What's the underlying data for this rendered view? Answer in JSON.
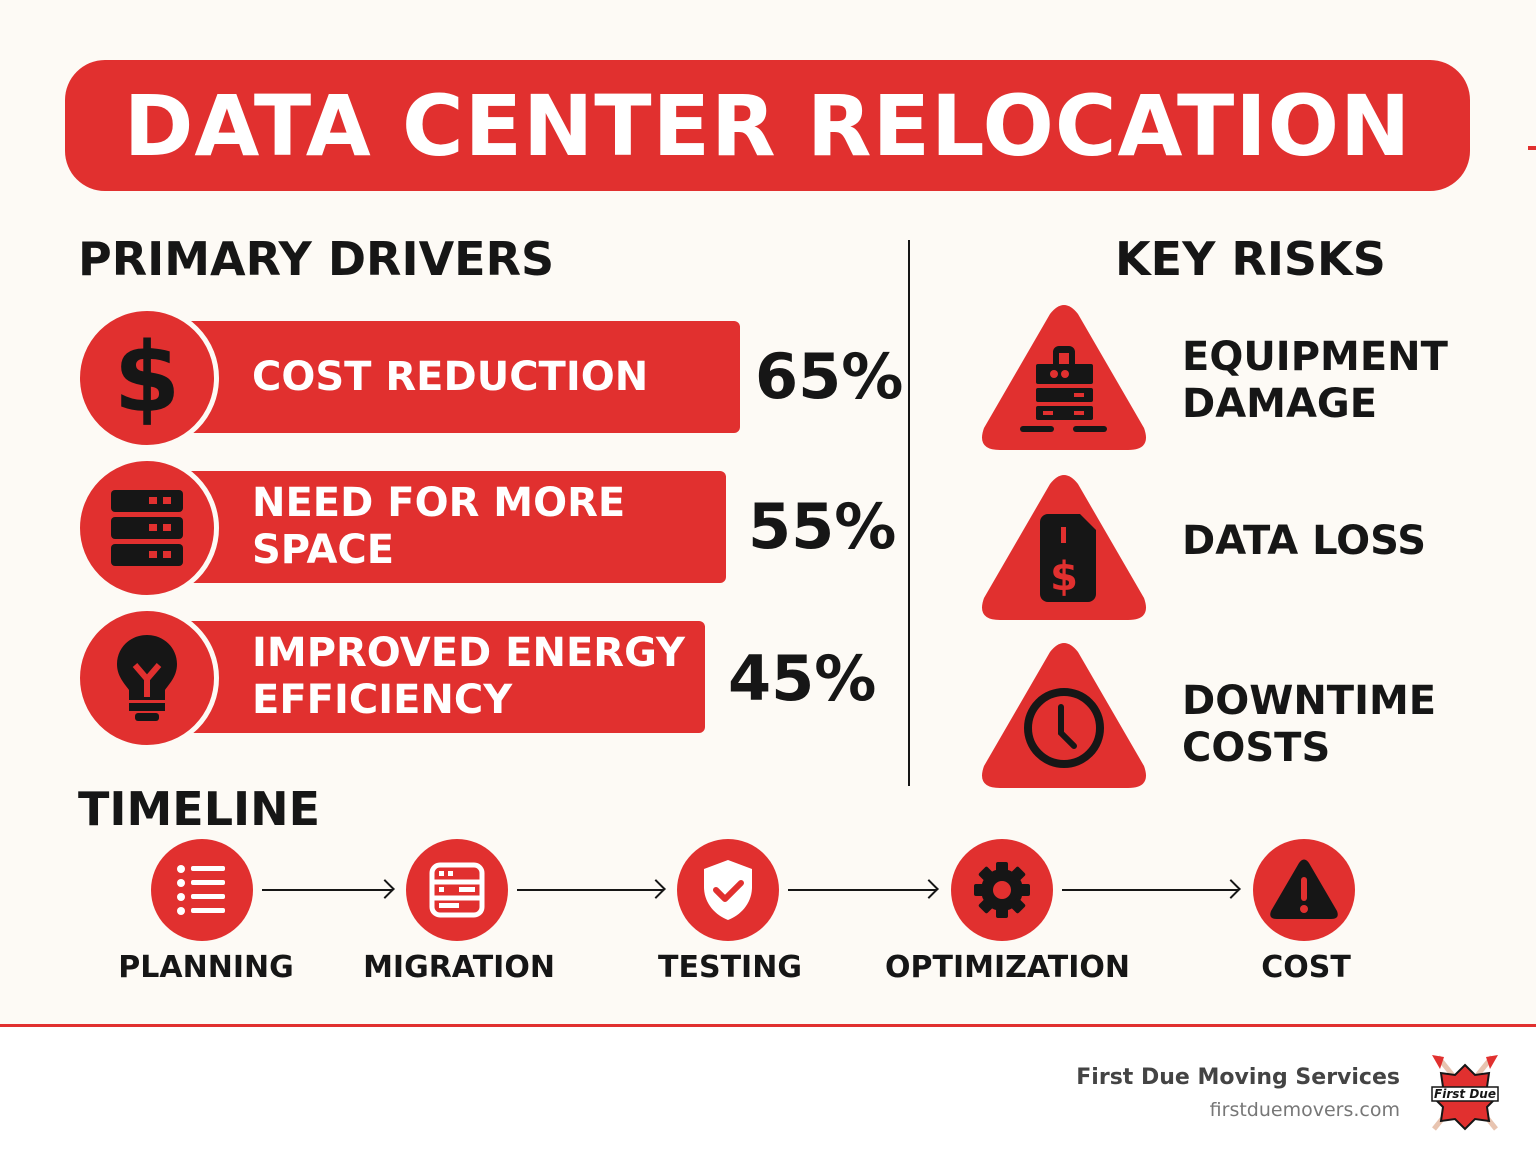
{
  "title": "DATA CENTER RELOCATION",
  "colors": {
    "accent": "#e1302f",
    "text": "#161616",
    "background": "#fdfaf5"
  },
  "drivers": {
    "heading": "PRIMARY DRIVERS",
    "items": [
      {
        "label": "COST REDUCTION",
        "percent": "65%",
        "value": 65,
        "icon": "dollar-icon"
      },
      {
        "label_lines": [
          "NEED FOR MORE",
          "SPACE"
        ],
        "percent": "55%",
        "value": 55,
        "icon": "server-icon"
      },
      {
        "label_lines": [
          "IMPROVED ENERGY",
          "EFFICIENCY"
        ],
        "percent": "45%",
        "value": 45,
        "icon": "lightbulb-icon"
      }
    ]
  },
  "risks": {
    "heading": "KEY RISKS",
    "items": [
      {
        "label_lines": [
          "EQUIPMENT",
          "DAMAGE"
        ],
        "icon": "server-lock-icon"
      },
      {
        "label": "DATA LOSS",
        "icon": "dollar-file-icon"
      },
      {
        "label_lines": [
          "DOWNTIME",
          "COSTS"
        ],
        "icon": "clock-icon"
      }
    ]
  },
  "timeline": {
    "heading": "TIMELINE",
    "steps": [
      {
        "label": "PLANNING",
        "icon": "list-icon"
      },
      {
        "label": "MIGRATION",
        "icon": "server-icon"
      },
      {
        "label": "TESTING",
        "icon": "shield-check-icon"
      },
      {
        "label": "OPTIMIZATION",
        "icon": "gear-icon"
      },
      {
        "label": "COST",
        "icon": "warning-icon"
      }
    ]
  },
  "footer": {
    "company": "First Due Moving Services",
    "url": "firstduemovers.com",
    "logo_text": "First Due"
  }
}
